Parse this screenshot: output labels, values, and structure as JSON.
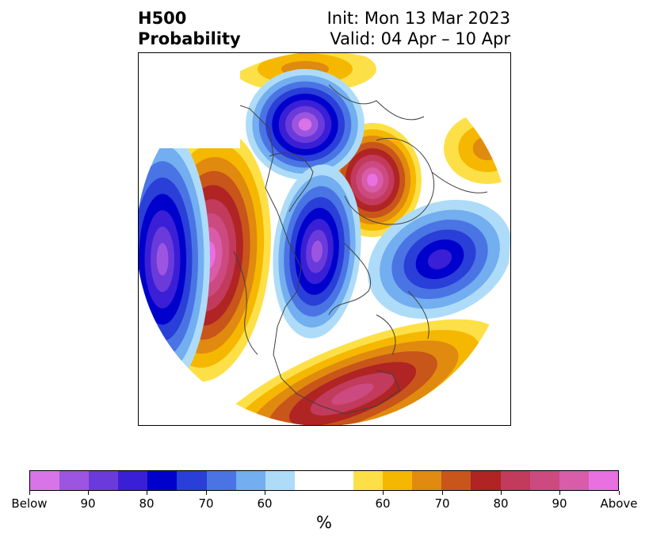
{
  "title": {
    "line1_left": "H500",
    "line2_left": "Probability",
    "line1_right": "Init: Mon 13 Mar 2023",
    "line2_right": "Valid: 04 Apr – 10 Apr"
  },
  "colorbar": {
    "colors": [
      "#d874e8",
      "#9c55e0",
      "#6a3ada",
      "#3a1fd6",
      "#0000cc",
      "#2a3ed8",
      "#4a74e4",
      "#72aef0",
      "#aedcf8",
      "#ffffff",
      "#fde047",
      "#f6b700",
      "#e08a10",
      "#c8551a",
      "#b02424",
      "#c23a5c",
      "#cc4a80",
      "#d85ca8",
      "#e870e0"
    ],
    "tick_labels": [
      "Below",
      "90",
      "80",
      "70",
      "60",
      "60",
      "70",
      "80",
      "90",
      "Above"
    ],
    "unit": "%"
  },
  "map_colors": {
    "below": [
      "#d874e8",
      "#9c55e0",
      "#6a3ada",
      "#3a1fd6",
      "#0000cc",
      "#2a3ed8",
      "#4a74e4",
      "#72aef0",
      "#aedcf8"
    ],
    "above": [
      "#fde047",
      "#f6b700",
      "#e08a10",
      "#c8551a",
      "#b02424",
      "#c23a5c",
      "#cc4a80",
      "#d85ca8",
      "#e870e0"
    ],
    "coastline": "#404040"
  }
}
